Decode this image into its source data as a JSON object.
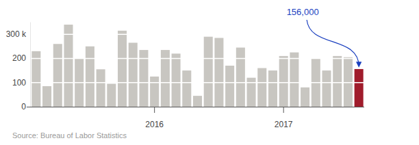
{
  "chart_data": {
    "type": "bar",
    "categories": [
      null,
      null,
      null,
      null,
      null,
      null,
      null,
      null,
      null,
      null,
      null,
      "2016",
      null,
      null,
      null,
      null,
      null,
      null,
      null,
      null,
      null,
      null,
      null,
      "2017",
      null,
      null,
      null,
      null,
      null,
      null,
      null
    ],
    "values": [
      230,
      85,
      260,
      340,
      200,
      250,
      155,
      95,
      315,
      265,
      235,
      125,
      235,
      220,
      150,
      45,
      290,
      285,
      170,
      245,
      120,
      160,
      150,
      210,
      225,
      80,
      200,
      150,
      210,
      205,
      156
    ],
    "colors": [
      "#c8c6c1",
      "#c8c6c1",
      "#c8c6c1",
      "#c8c6c1",
      "#c8c6c1",
      "#c8c6c1",
      "#c8c6c1",
      "#c8c6c1",
      "#c8c6c1",
      "#c8c6c1",
      "#c8c6c1",
      "#c8c6c1",
      "#c8c6c1",
      "#c8c6c1",
      "#c8c6c1",
      "#c8c6c1",
      "#c8c6c1",
      "#c8c6c1",
      "#c8c6c1",
      "#c8c6c1",
      "#c8c6c1",
      "#c8c6c1",
      "#c8c6c1",
      "#c8c6c1",
      "#c8c6c1",
      "#c8c6c1",
      "#c8c6c1",
      "#c8c6c1",
      "#c8c6c1",
      "#c8c6c1",
      "#a01c2c"
    ],
    "ylim": [
      0,
      350
    ],
    "yticks": [
      0,
      100,
      200,
      {
        "value": 300,
        "label": "300 k"
      }
    ],
    "grid": true,
    "annotation": "156,000",
    "source": "Source: Bureau of Labor Statistics"
  }
}
